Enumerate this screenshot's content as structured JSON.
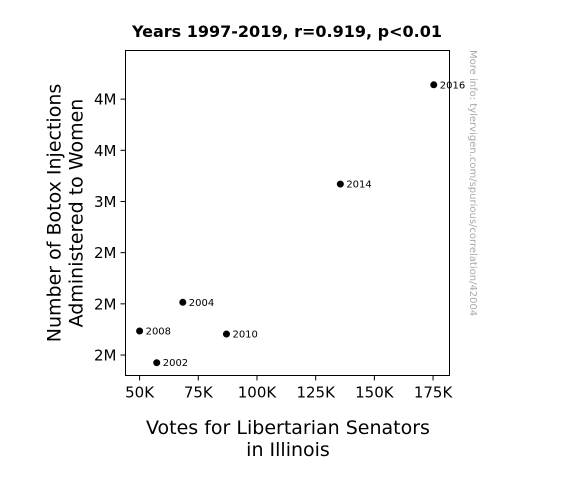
{
  "chart_data": {
    "type": "scatter",
    "title": "Years 1997-2019, r=0.919, p<0.01",
    "xlabel": [
      "Votes for Libertarian Senators",
      "in Illinois"
    ],
    "ylabel": [
      "Number of Botox Injections",
      "Administered to Women"
    ],
    "xlim": [
      44000,
      182000
    ],
    "ylim": [
      1300000,
      4475000
    ],
    "x_ticks": [
      {
        "value": 50000,
        "label": "50K"
      },
      {
        "value": 75000,
        "label": "75K"
      },
      {
        "value": 100000,
        "label": "100K"
      },
      {
        "value": 125000,
        "label": "125K"
      },
      {
        "value": 150000,
        "label": "150K"
      },
      {
        "value": 175000,
        "label": "175K"
      }
    ],
    "y_ticks": [
      {
        "value": 1500000,
        "label": "2M"
      },
      {
        "value": 2000000,
        "label": "2M"
      },
      {
        "value": 2500000,
        "label": "2M"
      },
      {
        "value": 3000000,
        "label": "3M"
      },
      {
        "value": 3500000,
        "label": "4M"
      },
      {
        "value": 4000000,
        "label": "4M"
      }
    ],
    "points": [
      {
        "label": "2016",
        "x": 175300,
        "y": 4140000
      },
      {
        "label": "2014",
        "x": 135500,
        "y": 3170000
      },
      {
        "label": "2004",
        "x": 68400,
        "y": 2015000
      },
      {
        "label": "2008",
        "x": 50000,
        "y": 1735000
      },
      {
        "label": "2010",
        "x": 87000,
        "y": 1705000
      },
      {
        "label": "2002",
        "x": 57300,
        "y": 1425000
      }
    ],
    "grid": false,
    "marker_color": "#000000",
    "watermark": "More info: tylervigen.com/spurious/correlation/42004"
  }
}
